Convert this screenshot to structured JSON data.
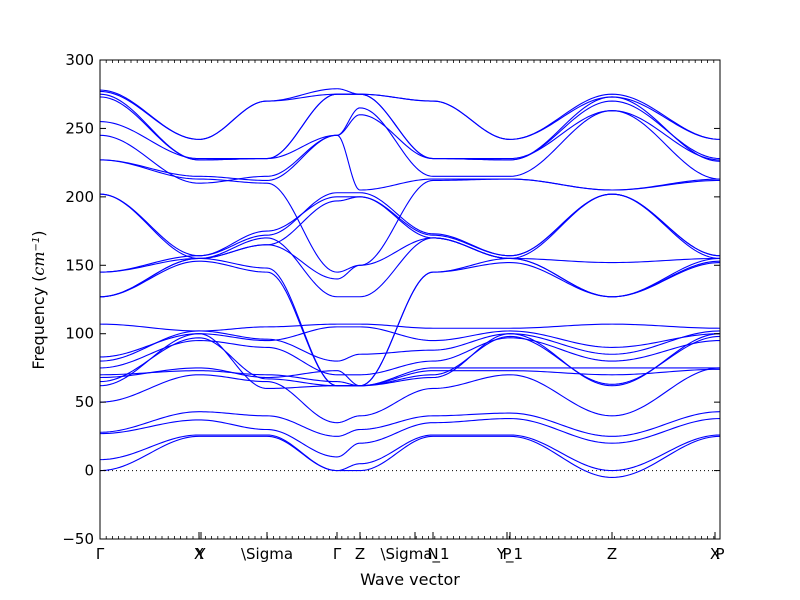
{
  "chart_data": {
    "type": "line",
    "title": "",
    "xlabel": "Wave vector",
    "ylabel_prefix": "Frequency (",
    "ylabel_unit_base": "cm",
    "ylabel_unit_exp": "−1",
    "ylabel_suffix": ")",
    "ylim": [
      -50,
      300
    ],
    "yticks": [
      -50,
      0,
      50,
      100,
      150,
      200,
      250,
      300
    ],
    "xlim": [
      0,
      6.2
    ],
    "high_symmetry_points": [
      {
        "label": "Γ",
        "x": 0.0
      },
      {
        "label": "X",
        "x": 0.99
      },
      {
        "label": "Y",
        "x": 1.01
      },
      {
        "label": "\\Sigma",
        "x": 1.67
      },
      {
        "label": "Γ",
        "x": 2.37
      },
      {
        "label": "Z",
        "x": 2.6
      },
      {
        "label": "\\Sigma_1",
        "x": 3.15
      },
      {
        "label": "N",
        "x": 3.33
      },
      {
        "label": "P",
        "x": 4.07
      },
      {
        "label": "Y_1",
        "x": 4.1
      },
      {
        "label": "Z",
        "x": 5.12
      },
      {
        "label": "X",
        "x": 6.15
      },
      {
        "label": "P",
        "x": 6.2
      }
    ],
    "zero_line": true,
    "grid": false,
    "legend": "none",
    "series_color": "#0000ff",
    "knot_x": [
      0,
      0.99,
      1.67,
      2.37,
      2.6,
      3.33,
      4.1,
      5.12,
      6.2
    ],
    "series": [
      {
        "values": [
          0,
          25,
          25,
          0,
          0,
          25,
          25,
          -5,
          25
        ]
      },
      {
        "values": [
          8,
          26,
          26,
          0,
          5,
          26,
          26,
          0,
          26
        ]
      },
      {
        "values": [
          27,
          37,
          30,
          10,
          20,
          35,
          38,
          20,
          38
        ]
      },
      {
        "values": [
          28,
          43,
          40,
          25,
          30,
          40,
          42,
          25,
          43
        ]
      },
      {
        "values": [
          50,
          70,
          65,
          35,
          40,
          60,
          70,
          40,
          75
        ]
      },
      {
        "values": [
          62,
          100,
          60,
          62,
          62,
          68,
          100,
          62,
          100
        ]
      },
      {
        "values": [
          65,
          97,
          67,
          62,
          62,
          70,
          98,
          63,
          98
        ]
      },
      {
        "values": [
          68,
          75,
          68,
          73,
          62,
          73,
          73,
          70,
          74
        ]
      },
      {
        "values": [
          70,
          73,
          70,
          65,
          62,
          75,
          75,
          75,
          75
        ]
      },
      {
        "values": [
          75,
          95,
          90,
          70,
          70,
          80,
          97,
          80,
          95
        ]
      },
      {
        "values": [
          80,
          102,
          96,
          80,
          85,
          88,
          100,
          85,
          102
        ]
      },
      {
        "values": [
          83,
          100,
          95,
          105,
          105,
          95,
          102,
          90,
          100
        ]
      },
      {
        "values": [
          107,
          102,
          105,
          107,
          107,
          104,
          104,
          107,
          104
        ]
      },
      {
        "values": [
          127,
          155,
          148,
          62,
          62,
          145,
          155,
          127,
          155
        ]
      },
      {
        "values": [
          127,
          153,
          145,
          62,
          62,
          145,
          152,
          127,
          153
        ]
      },
      {
        "values": [
          127,
          155,
          170,
          127,
          127,
          170,
          155,
          127,
          152
        ]
      },
      {
        "values": [
          145,
          155,
          165,
          140,
          150,
          170,
          155,
          152,
          155
        ]
      },
      {
        "values": [
          145,
          157,
          175,
          200,
          200,
          172,
          157,
          202,
          157
        ]
      },
      {
        "values": [
          202,
          157,
          172,
          203,
          203,
          173,
          157,
          202,
          157
        ]
      },
      {
        "values": [
          202,
          155,
          165,
          197,
          200,
          170,
          155,
          202,
          155
        ]
      },
      {
        "values": [
          227,
          213,
          210,
          145,
          150,
          212,
          213,
          205,
          212
        ]
      },
      {
        "values": [
          227,
          215,
          212,
          245,
          205,
          213,
          213,
          205,
          213
        ]
      },
      {
        "values": [
          245,
          210,
          215,
          245,
          265,
          215,
          215,
          263,
          213
        ]
      },
      {
        "values": [
          255,
          228,
          228,
          245,
          260,
          228,
          228,
          263,
          227
        ]
      },
      {
        "values": [
          273,
          227,
          228,
          275,
          275,
          228,
          227,
          270,
          228
        ]
      },
      {
        "values": [
          275,
          227,
          228,
          275,
          275,
          228,
          227,
          273,
          226
        ]
      },
      {
        "values": [
          277,
          242,
          270,
          275,
          275,
          270,
          242,
          273,
          242
        ]
      },
      {
        "values": [
          278,
          242,
          270,
          279,
          275,
          270,
          242,
          275,
          242
        ]
      }
    ]
  }
}
